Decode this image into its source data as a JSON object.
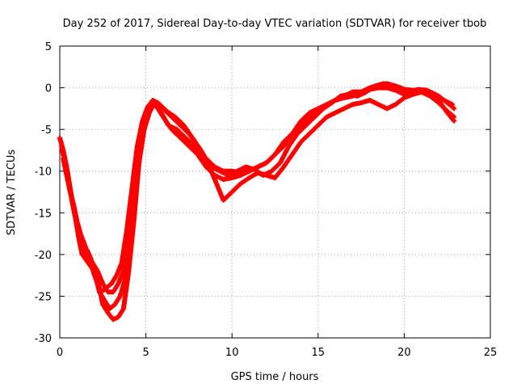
{
  "chart_data": {
    "type": "scatter",
    "title": "Day 252 of 2017, Sidereal Day-to-day VTEC variation (SDTVAR) for receiver tbob",
    "xlabel": "GPS time / hours",
    "ylabel": "SDTVAR / TECUs",
    "xlim": [
      0,
      25
    ],
    "ylim": [
      -30,
      5
    ],
    "xticks": [
      0,
      5,
      10,
      15,
      20,
      25
    ],
    "yticks": [
      -30,
      -25,
      -20,
      -15,
      -10,
      -5,
      0,
      5
    ],
    "grid": true,
    "marker": "plus",
    "series": [
      {
        "name": "track-a",
        "color": "#ff0000",
        "points": [
          [
            0.0,
            -6.0
          ],
          [
            0.2,
            -7.5
          ],
          [
            0.4,
            -9.5
          ],
          [
            0.6,
            -12.0
          ],
          [
            0.8,
            -14.5
          ],
          [
            1.0,
            -16.5
          ],
          [
            1.2,
            -19.0
          ],
          [
            1.7,
            -20.5
          ],
          [
            2.1,
            -23.0
          ],
          [
            2.4,
            -24.5
          ],
          [
            2.7,
            -24.0
          ],
          [
            3.0,
            -23.5
          ],
          [
            3.3,
            -22.5
          ],
          [
            3.6,
            -21.0
          ],
          [
            3.9,
            -17.0
          ],
          [
            4.2,
            -12.0
          ],
          [
            4.5,
            -7.0
          ],
          [
            4.8,
            -4.0
          ],
          [
            5.1,
            -2.3
          ],
          [
            5.4,
            -1.5
          ],
          [
            5.7,
            -1.8
          ],
          [
            6.0,
            -2.5
          ],
          [
            6.5,
            -3.5
          ],
          [
            7.0,
            -4.5
          ],
          [
            7.5,
            -5.5
          ],
          [
            8.0,
            -7.0
          ],
          [
            8.5,
            -8.5
          ],
          [
            9.0,
            -9.5
          ],
          [
            9.5,
            -10.0
          ],
          [
            10.0,
            -10.0
          ],
          [
            10.5,
            -10.2
          ],
          [
            11.0,
            -10.0
          ],
          [
            11.5,
            -9.5
          ],
          [
            12.0,
            -9.0
          ],
          [
            12.5,
            -8.0
          ],
          [
            13.0,
            -6.5
          ],
          [
            13.5,
            -5.5
          ],
          [
            14.0,
            -4.5
          ],
          [
            14.5,
            -3.5
          ],
          [
            15.0,
            -2.8
          ],
          [
            15.5,
            -2.0
          ],
          [
            16.0,
            -1.5
          ],
          [
            16.5,
            -1.0
          ],
          [
            17.0,
            -0.5
          ],
          [
            17.5,
            -0.5
          ],
          [
            18.0,
            0.0
          ],
          [
            18.5,
            0.3
          ],
          [
            19.0,
            0.5
          ],
          [
            19.5,
            0.2
          ],
          [
            20.0,
            -0.2
          ],
          [
            20.5,
            -0.3
          ],
          [
            21.0,
            -0.3
          ],
          [
            21.5,
            -0.5
          ],
          [
            22.0,
            -1.0
          ],
          [
            22.5,
            -1.8
          ],
          [
            22.9,
            -2.5
          ]
        ]
      },
      {
        "name": "track-b",
        "color": "#ff0000",
        "points": [
          [
            0.1,
            -7.0
          ],
          [
            0.3,
            -9.0
          ],
          [
            0.5,
            -11.0
          ],
          [
            0.7,
            -13.5
          ],
          [
            0.9,
            -15.5
          ],
          [
            1.1,
            -18.0
          ],
          [
            1.3,
            -20.0
          ],
          [
            2.0,
            -22.0
          ],
          [
            2.3,
            -24.5
          ],
          [
            2.6,
            -25.5
          ],
          [
            2.9,
            -26.5
          ],
          [
            3.2,
            -26.0
          ],
          [
            3.5,
            -25.0
          ],
          [
            3.8,
            -23.0
          ],
          [
            4.1,
            -18.0
          ],
          [
            4.4,
            -12.0
          ],
          [
            4.7,
            -6.0
          ],
          [
            5.0,
            -3.5
          ],
          [
            5.3,
            -2.0
          ],
          [
            5.6,
            -2.2
          ],
          [
            6.0,
            -3.5
          ],
          [
            6.5,
            -5.0
          ],
          [
            7.0,
            -6.0
          ],
          [
            7.5,
            -7.0
          ],
          [
            8.0,
            -8.0
          ],
          [
            8.5,
            -9.5
          ],
          [
            9.0,
            -10.5
          ],
          [
            9.5,
            -11.0
          ],
          [
            10.0,
            -10.8
          ],
          [
            10.5,
            -10.5
          ],
          [
            11.0,
            -10.0
          ],
          [
            11.5,
            -9.5
          ],
          [
            12.0,
            -9.0
          ],
          [
            12.5,
            -8.0
          ],
          [
            13.0,
            -7.0
          ],
          [
            13.5,
            -5.5
          ],
          [
            14.0,
            -4.0
          ],
          [
            14.5,
            -3.0
          ],
          [
            15.0,
            -2.5
          ],
          [
            15.5,
            -2.0
          ],
          [
            16.0,
            -1.5
          ],
          [
            16.5,
            -1.2
          ],
          [
            17.0,
            -1.0
          ],
          [
            17.5,
            -0.5
          ],
          [
            18.0,
            -0.2
          ],
          [
            18.5,
            0.0
          ],
          [
            19.0,
            0.0
          ],
          [
            19.5,
            -0.3
          ],
          [
            20.0,
            -0.8
          ],
          [
            20.5,
            -0.6
          ],
          [
            21.0,
            -0.5
          ],
          [
            21.5,
            -1.0
          ],
          [
            22.0,
            -1.8
          ],
          [
            22.5,
            -2.8
          ],
          [
            22.9,
            -3.5
          ]
        ]
      },
      {
        "name": "track-c",
        "color": "#ff0000",
        "points": [
          [
            0.2,
            -8.5
          ],
          [
            0.4,
            -10.5
          ],
          [
            0.6,
            -12.5
          ],
          [
            0.8,
            -14.0
          ],
          [
            1.0,
            -16.0
          ],
          [
            1.2,
            -17.5
          ],
          [
            2.2,
            -23.0
          ],
          [
            2.5,
            -26.0
          ],
          [
            2.8,
            -27.0
          ],
          [
            3.1,
            -27.8
          ],
          [
            3.4,
            -27.5
          ],
          [
            3.7,
            -26.5
          ],
          [
            4.0,
            -22.0
          ],
          [
            4.3,
            -16.0
          ],
          [
            4.6,
            -9.0
          ],
          [
            4.9,
            -5.0
          ],
          [
            5.2,
            -3.0
          ],
          [
            5.5,
            -1.8
          ],
          [
            5.8,
            -2.0
          ],
          [
            6.2,
            -2.8
          ],
          [
            6.7,
            -3.5
          ],
          [
            7.2,
            -4.5
          ],
          [
            7.7,
            -6.0
          ],
          [
            8.2,
            -7.5
          ],
          [
            8.7,
            -9.5
          ],
          [
            9.2,
            -12.0
          ],
          [
            9.5,
            -13.5
          ],
          [
            10.0,
            -12.5
          ],
          [
            10.5,
            -11.5
          ],
          [
            11.0,
            -10.8
          ],
          [
            11.5,
            -10.2
          ],
          [
            12.0,
            -10.5
          ],
          [
            12.5,
            -10.8
          ],
          [
            13.0,
            -9.5
          ],
          [
            13.5,
            -8.0
          ],
          [
            14.0,
            -6.5
          ],
          [
            14.5,
            -5.5
          ],
          [
            15.0,
            -4.5
          ],
          [
            15.5,
            -3.5
          ],
          [
            16.0,
            -3.0
          ],
          [
            16.5,
            -2.5
          ],
          [
            17.0,
            -2.0
          ],
          [
            17.5,
            -1.8
          ],
          [
            18.0,
            -1.5
          ],
          [
            18.5,
            -2.0
          ],
          [
            19.0,
            -2.5
          ],
          [
            19.5,
            -2.0
          ],
          [
            20.0,
            -1.2
          ],
          [
            20.5,
            -0.8
          ],
          [
            21.0,
            -0.5
          ],
          [
            21.5,
            -0.8
          ],
          [
            22.0,
            -1.5
          ],
          [
            22.5,
            -3.0
          ],
          [
            22.9,
            -4.0
          ]
        ]
      },
      {
        "name": "track-d",
        "color": "#ff0000",
        "points": [
          [
            1.6,
            -19.5
          ],
          [
            1.9,
            -21.0
          ],
          [
            2.2,
            -22.0
          ],
          [
            2.5,
            -23.5
          ],
          [
            2.8,
            -24.5
          ],
          [
            3.1,
            -24.5
          ],
          [
            3.4,
            -23.5
          ],
          [
            3.7,
            -22.0
          ],
          [
            4.0,
            -19.5
          ],
          [
            4.3,
            -14.0
          ],
          [
            4.6,
            -8.5
          ],
          [
            4.9,
            -4.5
          ],
          [
            5.2,
            -2.5
          ],
          [
            5.5,
            -1.8
          ],
          [
            5.9,
            -3.0
          ],
          [
            6.3,
            -4.5
          ],
          [
            6.8,
            -5.0
          ],
          [
            7.3,
            -6.0
          ],
          [
            7.8,
            -7.0
          ],
          [
            8.3,
            -8.5
          ],
          [
            8.8,
            -9.5
          ],
          [
            9.3,
            -10.0
          ],
          [
            9.8,
            -10.5
          ],
          [
            10.3,
            -10.0
          ],
          [
            10.8,
            -9.5
          ],
          [
            11.3,
            -9.8
          ],
          [
            11.8,
            -10.5
          ],
          [
            12.3,
            -10.0
          ],
          [
            12.8,
            -9.0
          ],
          [
            13.3,
            -7.0
          ],
          [
            13.8,
            -5.5
          ],
          [
            14.3,
            -4.5
          ],
          [
            14.8,
            -3.5
          ],
          [
            15.3,
            -2.5
          ],
          [
            15.8,
            -1.8
          ],
          [
            16.3,
            -1.0
          ],
          [
            16.8,
            -0.8
          ],
          [
            17.3,
            -1.0
          ],
          [
            17.8,
            -0.5
          ],
          [
            18.3,
            0.2
          ],
          [
            18.8,
            0.5
          ],
          [
            19.3,
            0.3
          ],
          [
            19.8,
            0.0
          ],
          [
            20.3,
            -0.5
          ],
          [
            20.8,
            -0.2
          ],
          [
            21.3,
            -0.3
          ],
          [
            21.8,
            -0.8
          ],
          [
            22.3,
            -1.5
          ],
          [
            22.8,
            -2.0
          ]
        ]
      }
    ]
  }
}
